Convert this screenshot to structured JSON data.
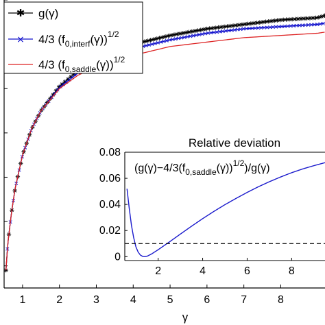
{
  "chart_data": [
    {
      "type": "line",
      "xlabel": "γ",
      "x_ticks": [
        1,
        2,
        3,
        4,
        5,
        6,
        7,
        8
      ],
      "xlim": [
        0.5,
        9.2
      ],
      "ylim": [
        0,
        1.3
      ],
      "legend_position": "top-left",
      "series": [
        {
          "name": "g(γ)",
          "color": "#000000",
          "marker": "star",
          "x": [
            0.55,
            0.6,
            0.7,
            0.8,
            1.0,
            1.25,
            1.5,
            2.0,
            2.5,
            3.0,
            3.5,
            4.0,
            4.5,
            5.0,
            6.0,
            7.0,
            8.0,
            9.0,
            9.2
          ],
          "y": [
            0.08,
            0.2,
            0.34,
            0.45,
            0.6,
            0.72,
            0.8,
            0.91,
            0.98,
            1.03,
            1.07,
            1.1,
            1.12,
            1.14,
            1.17,
            1.19,
            1.21,
            1.22,
            1.23
          ]
        },
        {
          "name": "4/3 (f0,interf(γ))1/2",
          "legend_text": "4/3 (f",
          "legend_sub": "0,interf",
          "legend_rest": "(γ))",
          "legend_sup": "1/2",
          "color": "#1010cc",
          "marker": "x",
          "x": [
            0.55,
            0.6,
            0.7,
            0.8,
            1.0,
            1.25,
            1.5,
            2.0,
            2.5,
            3.0,
            3.5,
            4.0,
            4.5,
            5.0,
            6.0,
            7.0,
            8.0,
            9.0,
            9.2
          ],
          "y": [
            0.08,
            0.2,
            0.34,
            0.45,
            0.6,
            0.72,
            0.8,
            0.905,
            0.97,
            1.02,
            1.055,
            1.08,
            1.1,
            1.12,
            1.15,
            1.17,
            1.18,
            1.19,
            1.195
          ]
        },
        {
          "name": "4/3 (f0,saddle(γ))1/2",
          "legend_text": "4/3 (f",
          "legend_sub": "0,saddle",
          "legend_rest": "(γ))",
          "legend_sup": "1/2",
          "color": "#dd2222",
          "marker": "none",
          "x": [
            0.55,
            0.6,
            0.7,
            0.8,
            1.0,
            1.25,
            1.5,
            2.0,
            2.5,
            3.0,
            3.5,
            4.0,
            4.5,
            5.0,
            6.0,
            7.0,
            8.0,
            9.0,
            9.2
          ],
          "y": [
            0.08,
            0.2,
            0.34,
            0.45,
            0.6,
            0.72,
            0.8,
            0.9,
            0.96,
            1.0,
            1.03,
            1.05,
            1.07,
            1.09,
            1.11,
            1.13,
            1.14,
            1.15,
            1.155
          ]
        }
      ]
    },
    {
      "type": "line",
      "title": "Relative deviation",
      "annotation_main": "(g(γ)−4/3(f",
      "annotation_sub": "0,saddle",
      "annotation_mid": "(γ))",
      "annotation_sup": "1/2",
      "annotation_end": ")/g(γ)",
      "x_ticks": [
        2,
        4,
        6,
        8
      ],
      "y_ticks": [
        0,
        0.02,
        0.04,
        0.06,
        0.08
      ],
      "xlim": [
        0.5,
        9.5
      ],
      "ylim": [
        -0.003,
        0.08
      ],
      "series": [
        {
          "name": "relative deviation",
          "color": "#1a1acc",
          "style": "solid",
          "x": [
            0.6,
            0.7,
            0.8,
            0.9,
            1.0,
            1.1,
            1.2,
            1.3,
            1.4,
            1.5,
            1.7,
            2.0,
            2.5,
            3.0,
            3.5,
            4.0,
            4.5,
            5.0,
            5.5,
            6.0,
            6.5,
            7.0,
            7.5,
            8.0,
            8.5,
            9.0,
            9.5
          ],
          "y": [
            0.052,
            0.037,
            0.024,
            0.0145,
            0.0075,
            0.0035,
            0.0012,
            0.0002,
            0.0,
            0.0003,
            0.002,
            0.0053,
            0.0112,
            0.0173,
            0.0233,
            0.0291,
            0.0346,
            0.0398,
            0.0446,
            0.0492,
            0.0535,
            0.0574,
            0.061,
            0.0643,
            0.0672,
            0.0697,
            0.072
          ]
        },
        {
          "name": "threshold",
          "color": "#000000",
          "style": "dashed",
          "x": [
            0.5,
            9.5
          ],
          "y": [
            0.01,
            0.01
          ]
        }
      ]
    }
  ]
}
